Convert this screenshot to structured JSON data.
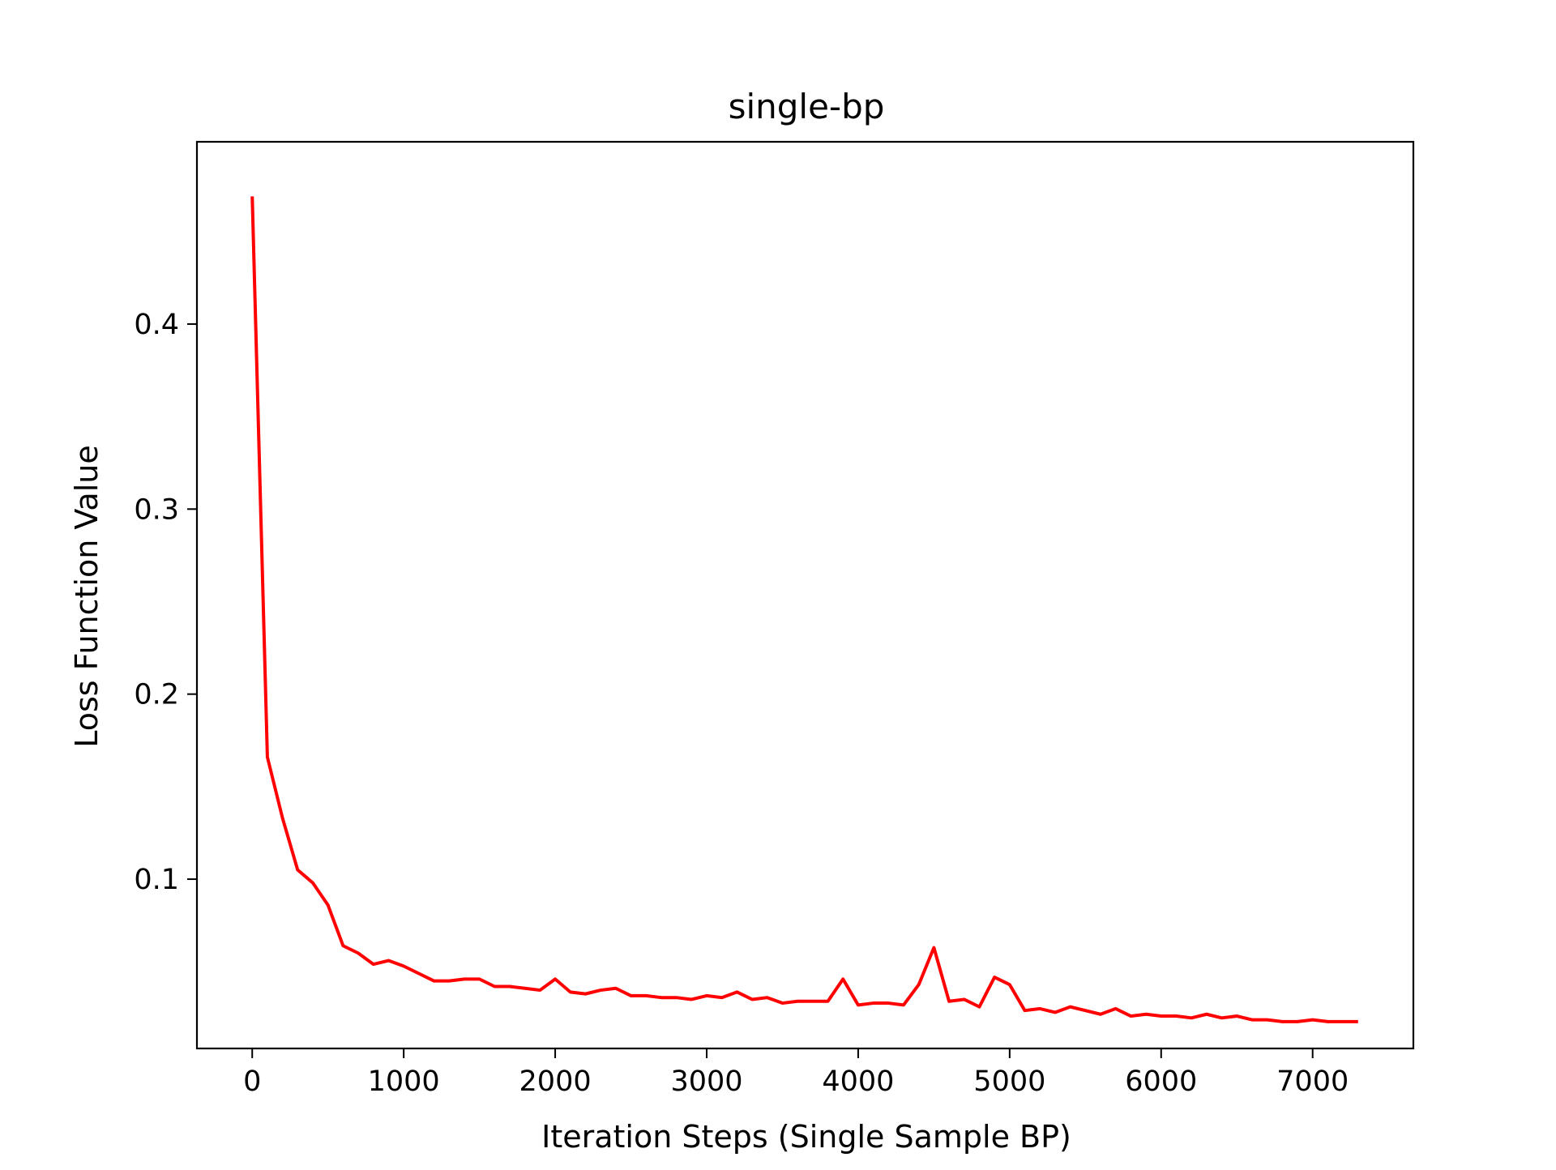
{
  "chart_data": {
    "type": "line",
    "title": "single-bp",
    "xlabel": "Iteration Steps (Single Sample BP)",
    "ylabel": "Loss Function Value",
    "xlim": [
      -365,
      7665
    ],
    "ylim": [
      0.0085,
      0.4985
    ],
    "xticks": [
      0,
      1000,
      2000,
      3000,
      4000,
      5000,
      6000,
      7000
    ],
    "xtick_labels": [
      "0",
      "1000",
      "2000",
      "3000",
      "4000",
      "5000",
      "6000",
      "7000"
    ],
    "yticks": [
      0.1,
      0.2,
      0.3,
      0.4
    ],
    "ytick_labels": [
      "0.1",
      "0.2",
      "0.3",
      "0.4"
    ],
    "grid": false,
    "series": [
      {
        "color": "#ff0000",
        "x": [
          0,
          100,
          200,
          300,
          400,
          500,
          600,
          700,
          800,
          900,
          1000,
          1100,
          1200,
          1300,
          1400,
          1500,
          1600,
          1700,
          1800,
          1900,
          2000,
          2100,
          2200,
          2300,
          2400,
          2500,
          2600,
          2700,
          2800,
          2900,
          3000,
          3100,
          3200,
          3300,
          3400,
          3500,
          3600,
          3700,
          3800,
          3900,
          4000,
          4100,
          4200,
          4300,
          4400,
          4500,
          4600,
          4700,
          4800,
          4900,
          5000,
          5100,
          5200,
          5300,
          5400,
          5500,
          5600,
          5700,
          5800,
          5900,
          6000,
          6100,
          6200,
          6300,
          6400,
          6500,
          6600,
          6700,
          6800,
          6900,
          7000,
          7100,
          7200,
          7300
        ],
        "y": [
          0.469,
          0.166,
          0.133,
          0.105,
          0.098,
          0.086,
          0.064,
          0.06,
          0.054,
          0.056,
          0.053,
          0.049,
          0.045,
          0.045,
          0.046,
          0.046,
          0.042,
          0.042,
          0.041,
          0.04,
          0.046,
          0.039,
          0.038,
          0.04,
          0.041,
          0.037,
          0.037,
          0.036,
          0.036,
          0.035,
          0.037,
          0.036,
          0.039,
          0.035,
          0.036,
          0.033,
          0.034,
          0.034,
          0.034,
          0.046,
          0.032,
          0.033,
          0.033,
          0.032,
          0.043,
          0.063,
          0.034,
          0.035,
          0.031,
          0.047,
          0.043,
          0.029,
          0.03,
          0.028,
          0.031,
          0.029,
          0.027,
          0.03,
          0.026,
          0.027,
          0.026,
          0.026,
          0.025,
          0.027,
          0.025,
          0.026,
          0.024,
          0.024,
          0.023,
          0.023,
          0.024,
          0.023,
          0.023,
          0.023
        ]
      }
    ]
  }
}
